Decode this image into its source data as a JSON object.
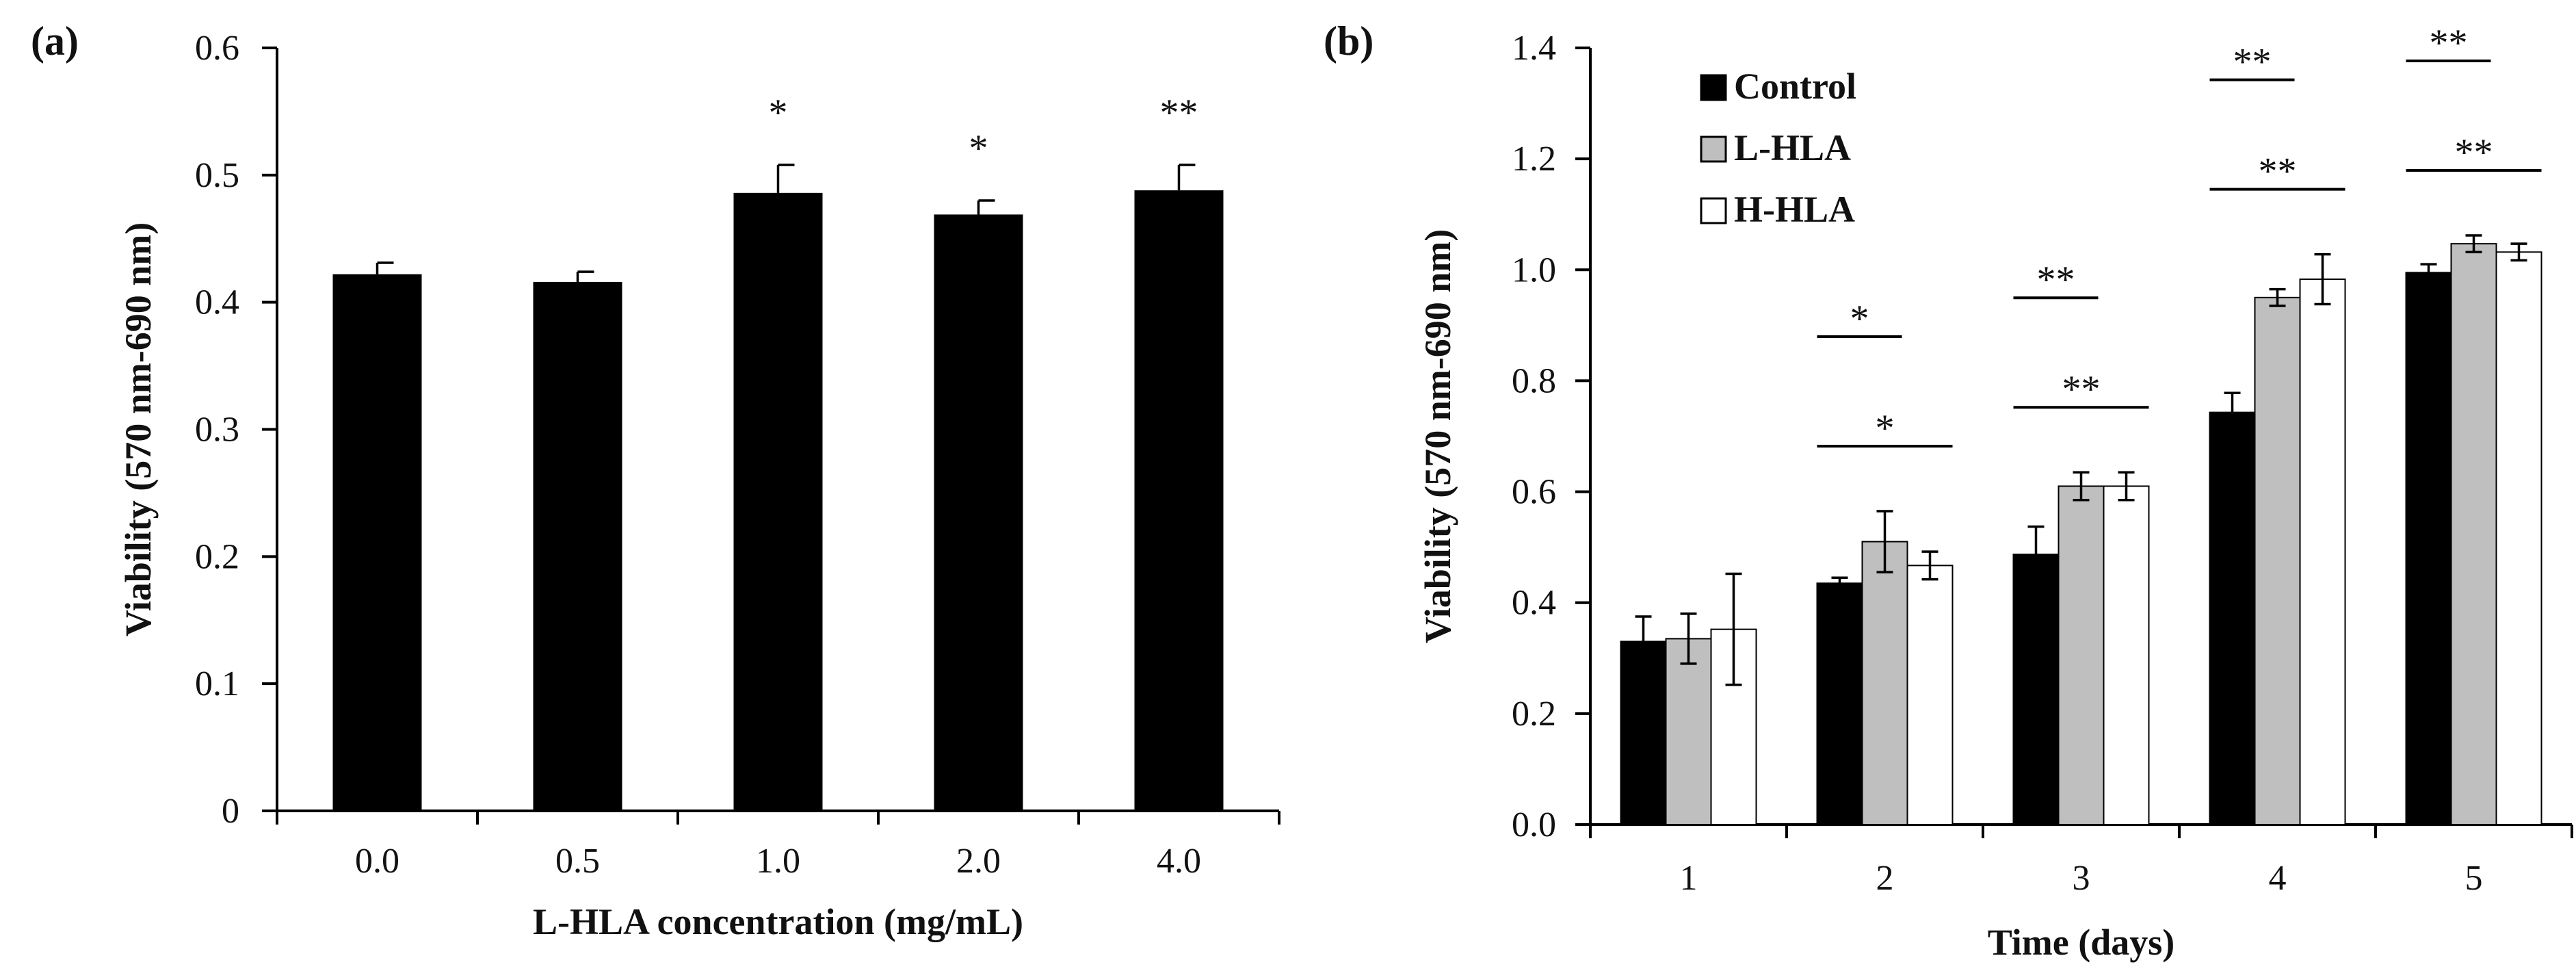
{
  "chart_data": [
    {
      "type": "bar",
      "panel_label": "(a)",
      "categories": [
        "0.0",
        "0.5",
        "1.0",
        "2.0",
        "4.0"
      ],
      "values": [
        0.422,
        0.416,
        0.486,
        0.469,
        0.488
      ],
      "errors": [
        0.009,
        0.008,
        0.022,
        0.011,
        0.02
      ],
      "significance": [
        "",
        "",
        "*",
        "*",
        "**"
      ],
      "xlabel": "L-HLA concentration (mg/mL)",
      "ylabel": "Viability (570 nm-690 nm)",
      "ylim": [
        0,
        0.6
      ],
      "yticks": [
        0,
        0.1,
        0.2,
        0.3,
        0.4,
        0.5,
        0.6
      ],
      "ytick_labels": [
        "0",
        "0.1",
        "0.2",
        "0.3",
        "0.4",
        "0.5",
        "0.6"
      ],
      "colors": {
        "bar": "#000000"
      },
      "grid": false
    },
    {
      "type": "bar",
      "panel_label": "(b)",
      "categories": [
        "1",
        "2",
        "3",
        "4",
        "5"
      ],
      "series": [
        {
          "name": "Control",
          "values": [
            0.33,
            0.435,
            0.487,
            0.743,
            0.995
          ],
          "errors": [
            0.045,
            0.01,
            0.05,
            0.035,
            0.015
          ],
          "color": "#000000"
        },
        {
          "name": "L-HLA",
          "values": [
            0.335,
            0.51,
            0.61,
            0.95,
            1.047
          ],
          "errors": [
            0.045,
            0.055,
            0.025,
            0.015,
            0.015
          ],
          "color": "#bfbfbf"
        },
        {
          "name": "H-HLA",
          "values": [
            0.352,
            0.467,
            0.61,
            0.983,
            1.032
          ],
          "errors": [
            0.1,
            0.025,
            0.025,
            0.045,
            0.015
          ],
          "color": "#ffffff"
        }
      ],
      "significance": [
        {
          "day": "2",
          "compare": "Control vs L-HLA",
          "label": "*"
        },
        {
          "day": "2",
          "compare": "Control vs H-HLA",
          "label": "*"
        },
        {
          "day": "3",
          "compare": "Control vs L-HLA",
          "label": "**"
        },
        {
          "day": "3",
          "compare": "Control vs H-HLA",
          "label": "**"
        },
        {
          "day": "4",
          "compare": "Control vs L-HLA",
          "label": "**"
        },
        {
          "day": "4",
          "compare": "Control vs H-HLA",
          "label": "**"
        },
        {
          "day": "5",
          "compare": "Control vs L-HLA",
          "label": "**"
        },
        {
          "day": "5",
          "compare": "Control vs H-HLA",
          "label": "**"
        }
      ],
      "xlabel": "Time (days)",
      "ylabel": "Viability (570 nm-690 nm)",
      "ylim": [
        0,
        1.4
      ],
      "yticks": [
        0,
        0.2,
        0.4,
        0.6,
        0.8,
        1.0,
        1.2,
        1.4
      ],
      "ytick_labels": [
        "0.0",
        "0.2",
        "0.4",
        "0.6",
        "0.8",
        "1.0",
        "1.2",
        "1.4"
      ],
      "legend_position": "top-left",
      "grid": false
    }
  ]
}
